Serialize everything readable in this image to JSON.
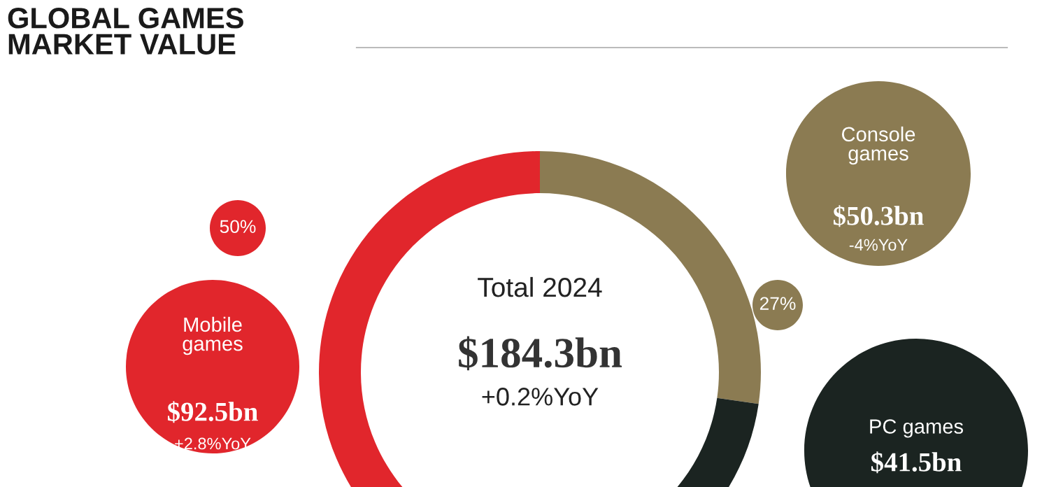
{
  "chart_data": {
    "type": "donut",
    "title": "GLOBAL GAMES\nMARKET VALUE",
    "categories": [
      "Console games",
      "PC games",
      "Mobile games"
    ],
    "values": [
      50.3,
      41.5,
      92.5
    ],
    "colors": [
      "#8b7b52",
      "#1b2421",
      "#e1262c"
    ],
    "value_labels": [
      "$50.3bn",
      "$41.5bn",
      "$92.5bn"
    ],
    "annotations": [
      "Total 2024",
      "$184.3bn",
      "+0.2%YoY",
      {
        "text": "-4%YoY",
        "x": "Console games"
      },
      {
        "text": "+2.8%YoY",
        "x": "Mobile games"
      },
      {
        "text": "27%",
        "x": "Console games"
      },
      {
        "text": "50%",
        "x": "Mobile games"
      }
    ]
  }
}
